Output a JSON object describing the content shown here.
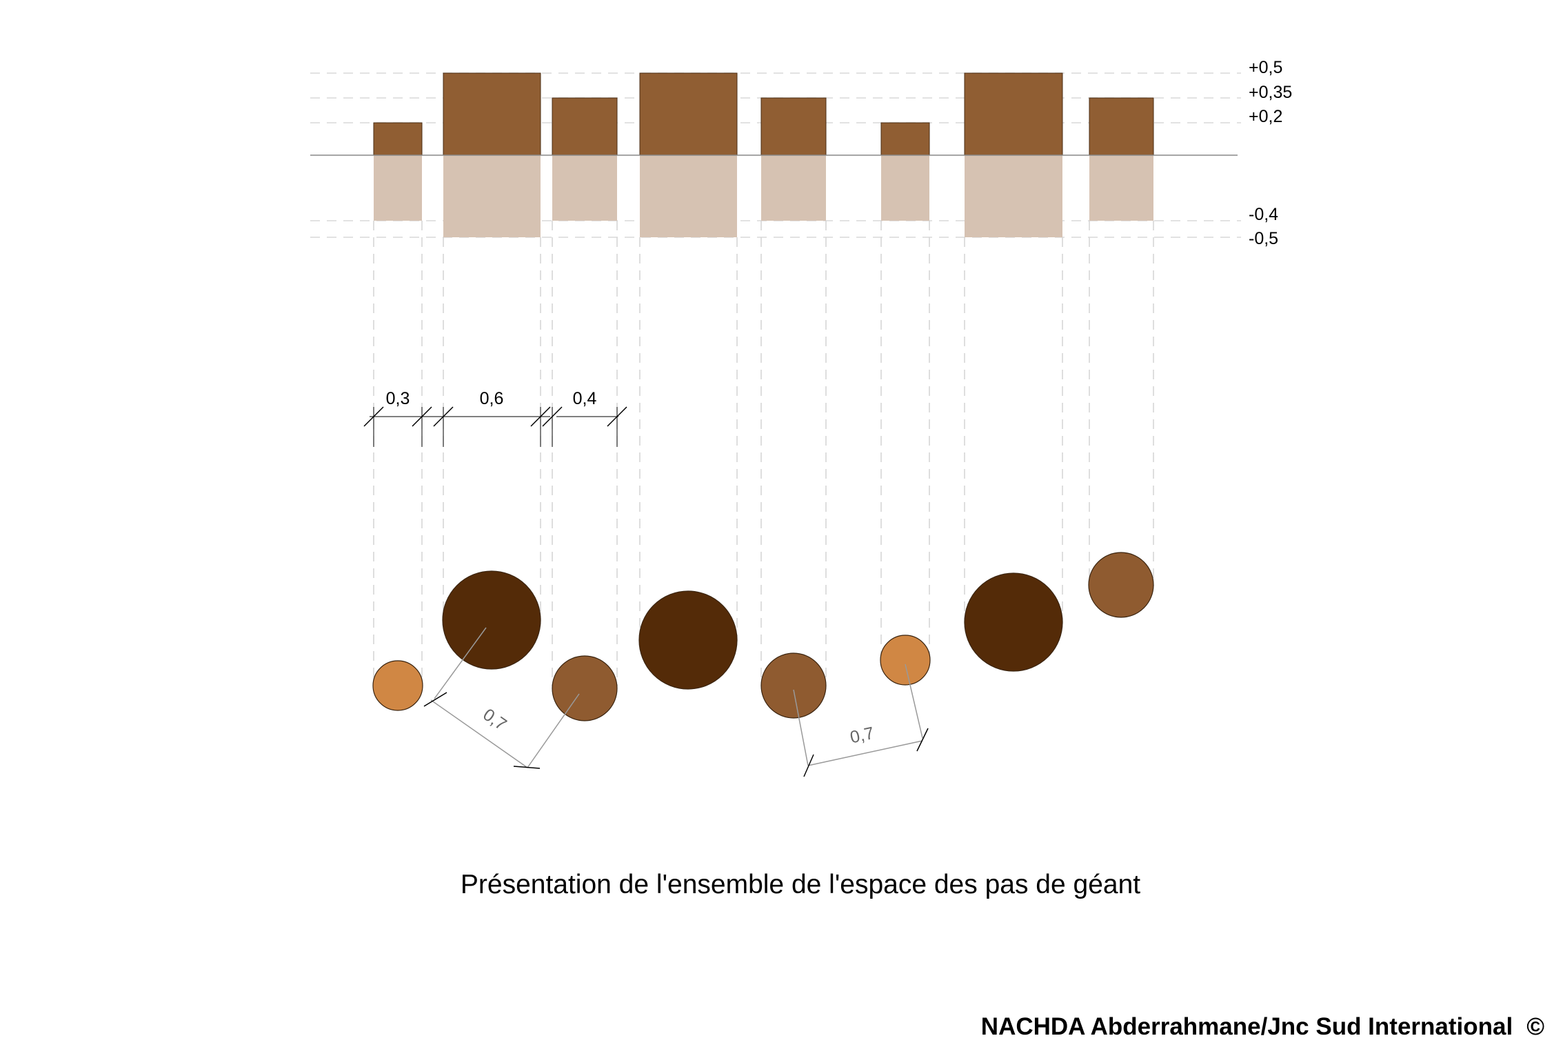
{
  "levels": {
    "top": [
      "+0,5",
      "+0,35",
      "+0,2"
    ],
    "bottom": [
      "-0,4",
      "-0,5"
    ]
  },
  "dimensions": {
    "widths": [
      "0,3",
      "0,6",
      "0,4"
    ],
    "spacing_left": "0,7",
    "spacing_right": "0,7"
  },
  "caption": "Présentation de l'ensemble de l'espace des pas de géant",
  "credit": "NACHDA Abderrahmane/Jnc Sud International",
  "credit_symbol": "©",
  "colors": {
    "bar_above": "#905e33",
    "bar_below": "#d6c2b2",
    "stone_dark": "#542b08",
    "stone_medium": "#8f5b30",
    "stone_light": "#d08744",
    "guide_line": "#cccccc"
  }
}
